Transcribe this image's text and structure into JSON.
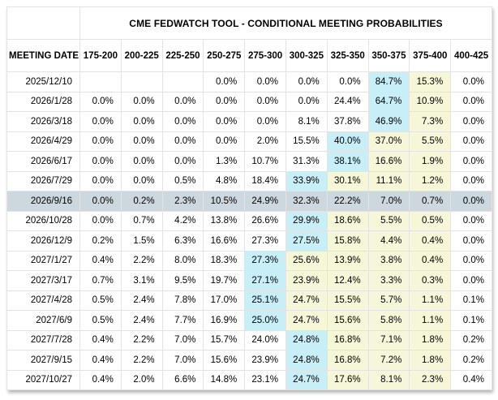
{
  "chart_data": {
    "type": "table",
    "title": "CME FEDWATCH TOOL - CONDITIONAL MEETING PROBABILITIES",
    "date_column_header": "MEETING DATE",
    "rate_range_headers": [
      "175-200",
      "200-225",
      "225-250",
      "250-275",
      "275-300",
      "300-325",
      "325-350",
      "350-375",
      "375-400",
      "400-425"
    ],
    "style_legend": {
      "b": "cyan highlight cell",
      "y": "yellow highlight cell",
      "n": "plain cell"
    },
    "rows": [
      {
        "date": "2025/12/10",
        "cells": [
          "",
          "",
          "",
          "0.0%",
          "0.0%",
          "0.0%",
          "0.0%",
          "84.7%",
          "15.3%",
          "0.0%"
        ],
        "styles": [
          "n",
          "n",
          "n",
          "n",
          "n",
          "n",
          "n",
          "b",
          "y",
          "n"
        ],
        "highlighted": false
      },
      {
        "date": "2026/1/28",
        "cells": [
          "0.0%",
          "0.0%",
          "0.0%",
          "0.0%",
          "0.0%",
          "0.0%",
          "24.4%",
          "64.7%",
          "10.9%",
          "0.0%"
        ],
        "styles": [
          "n",
          "n",
          "n",
          "n",
          "n",
          "n",
          "n",
          "b",
          "y",
          "n"
        ],
        "highlighted": false
      },
      {
        "date": "2026/3/18",
        "cells": [
          "0.0%",
          "0.0%",
          "0.0%",
          "0.0%",
          "0.0%",
          "8.1%",
          "37.8%",
          "46.9%",
          "7.3%",
          "0.0%"
        ],
        "styles": [
          "n",
          "n",
          "n",
          "n",
          "n",
          "n",
          "n",
          "b",
          "y",
          "n"
        ],
        "highlighted": false
      },
      {
        "date": "2026/4/29",
        "cells": [
          "0.0%",
          "0.0%",
          "0.0%",
          "0.0%",
          "2.0%",
          "15.5%",
          "40.0%",
          "37.0%",
          "5.5%",
          "0.0%"
        ],
        "styles": [
          "n",
          "n",
          "n",
          "n",
          "n",
          "n",
          "b",
          "y",
          "y",
          "n"
        ],
        "highlighted": false
      },
      {
        "date": "2026/6/17",
        "cells": [
          "0.0%",
          "0.0%",
          "0.0%",
          "1.3%",
          "10.7%",
          "31.3%",
          "38.1%",
          "16.6%",
          "1.9%",
          "0.0%"
        ],
        "styles": [
          "n",
          "n",
          "n",
          "n",
          "n",
          "n",
          "b",
          "y",
          "y",
          "n"
        ],
        "highlighted": false
      },
      {
        "date": "2026/7/29",
        "cells": [
          "0.0%",
          "0.0%",
          "0.5%",
          "4.8%",
          "18.4%",
          "33.9%",
          "30.1%",
          "11.1%",
          "1.2%",
          "0.0%"
        ],
        "styles": [
          "n",
          "n",
          "n",
          "n",
          "n",
          "b",
          "y",
          "y",
          "y",
          "n"
        ],
        "highlighted": false
      },
      {
        "date": "2026/9/16",
        "cells": [
          "0.0%",
          "0.2%",
          "2.3%",
          "10.5%",
          "24.9%",
          "32.3%",
          "22.2%",
          "7.0%",
          "0.7%",
          "0.0%"
        ],
        "styles": [
          "n",
          "n",
          "n",
          "n",
          "n",
          "n",
          "n",
          "n",
          "n",
          "n"
        ],
        "highlighted": true
      },
      {
        "date": "2026/10/28",
        "cells": [
          "0.0%",
          "0.7%",
          "4.2%",
          "13.8%",
          "26.6%",
          "29.9%",
          "18.6%",
          "5.5%",
          "0.5%",
          "0.0%"
        ],
        "styles": [
          "n",
          "n",
          "n",
          "n",
          "n",
          "b",
          "y",
          "y",
          "y",
          "n"
        ],
        "highlighted": false
      },
      {
        "date": "2026/12/9",
        "cells": [
          "0.2%",
          "1.5%",
          "6.3%",
          "16.6%",
          "27.3%",
          "27.5%",
          "15.8%",
          "4.4%",
          "0.4%",
          "0.0%"
        ],
        "styles": [
          "n",
          "n",
          "n",
          "n",
          "n",
          "b",
          "y",
          "y",
          "y",
          "n"
        ],
        "highlighted": false
      },
      {
        "date": "2027/1/27",
        "cells": [
          "0.4%",
          "2.2%",
          "8.0%",
          "18.3%",
          "27.3%",
          "25.6%",
          "13.9%",
          "3.8%",
          "0.4%",
          "0.0%"
        ],
        "styles": [
          "n",
          "n",
          "n",
          "n",
          "b",
          "y",
          "y",
          "y",
          "y",
          "n"
        ],
        "highlighted": false
      },
      {
        "date": "2027/3/17",
        "cells": [
          "0.7%",
          "3.1%",
          "9.5%",
          "19.7%",
          "27.1%",
          "23.9%",
          "12.4%",
          "3.3%",
          "0.3%",
          "0.0%"
        ],
        "styles": [
          "n",
          "n",
          "n",
          "n",
          "b",
          "y",
          "y",
          "y",
          "y",
          "n"
        ],
        "highlighted": false
      },
      {
        "date": "2027/4/28",
        "cells": [
          "0.5%",
          "2.4%",
          "7.8%",
          "17.0%",
          "25.1%",
          "24.7%",
          "15.5%",
          "5.7%",
          "1.1%",
          "0.1%"
        ],
        "styles": [
          "n",
          "n",
          "n",
          "n",
          "b",
          "y",
          "y",
          "y",
          "y",
          "n"
        ],
        "highlighted": false
      },
      {
        "date": "2027/6/9",
        "cells": [
          "0.5%",
          "2.4%",
          "7.7%",
          "16.9%",
          "25.0%",
          "24.7%",
          "15.6%",
          "5.8%",
          "1.1%",
          "0.1%"
        ],
        "styles": [
          "n",
          "n",
          "n",
          "n",
          "b",
          "y",
          "y",
          "y",
          "y",
          "n"
        ],
        "highlighted": false
      },
      {
        "date": "2027/7/28",
        "cells": [
          "0.4%",
          "2.2%",
          "7.0%",
          "15.7%",
          "24.0%",
          "24.8%",
          "16.8%",
          "7.1%",
          "1.8%",
          "0.2%"
        ],
        "styles": [
          "n",
          "n",
          "n",
          "n",
          "n",
          "b",
          "y",
          "y",
          "y",
          "n"
        ],
        "highlighted": false
      },
      {
        "date": "2027/9/15",
        "cells": [
          "0.4%",
          "2.2%",
          "7.0%",
          "15.6%",
          "23.9%",
          "24.8%",
          "16.8%",
          "7.2%",
          "1.8%",
          "0.2%"
        ],
        "styles": [
          "n",
          "n",
          "n",
          "n",
          "n",
          "b",
          "y",
          "y",
          "y",
          "n"
        ],
        "highlighted": false
      },
      {
        "date": "2027/10/27",
        "cells": [
          "0.4%",
          "2.0%",
          "6.6%",
          "14.8%",
          "23.1%",
          "24.7%",
          "17.6%",
          "8.1%",
          "2.3%",
          "0.4%"
        ],
        "styles": [
          "n",
          "n",
          "n",
          "n",
          "n",
          "b",
          "y",
          "y",
          "y",
          "n"
        ],
        "highlighted": false
      }
    ]
  },
  "colors": {
    "cell_blue": "#c8eef8",
    "cell_yellow": "#f6f6d8",
    "row_highlight": "#ccd8dd",
    "border_inner": "#e3e3e3",
    "border_outer": "#c4c4c4",
    "text": "#000000"
  }
}
